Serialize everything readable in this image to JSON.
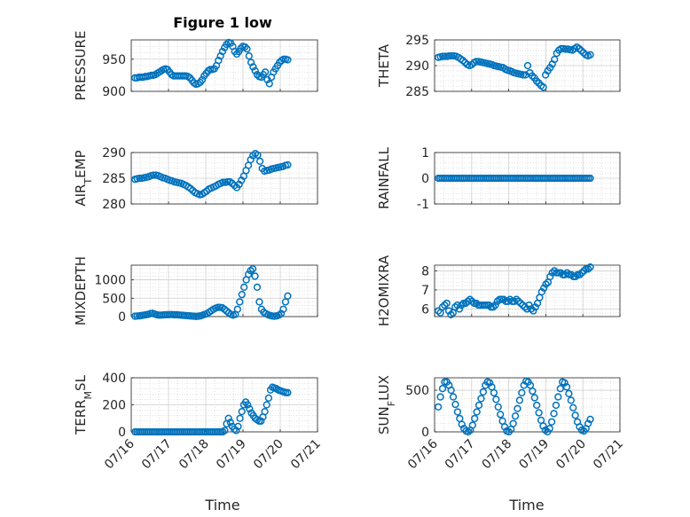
{
  "figure": {
    "title": "Figure 1 low"
  },
  "chart_data": [
    {
      "type": "scatter",
      "title": "Figure 1 low",
      "ylabel": "PRESSURE",
      "ylim": [
        900,
        980
      ],
      "yticks": [
        900,
        950
      ],
      "xlim": [
        0,
        5
      ],
      "xticks": [
        0,
        1,
        2,
        3,
        4,
        5
      ],
      "grid": true,
      "minor_grid": true,
      "marker": "open-circle",
      "series": [
        {
          "x_start": 0.1,
          "x_end": 4.2,
          "y": [
            921,
            921,
            922,
            922,
            922,
            923,
            923,
            924,
            925,
            925,
            926,
            928,
            930,
            932,
            934,
            935,
            934,
            930,
            926,
            924,
            924,
            924,
            924,
            924,
            924,
            924,
            923,
            921,
            917,
            913,
            911,
            912,
            914,
            918,
            924,
            928,
            932,
            934,
            934,
            935,
            940,
            948,
            955,
            962,
            968,
            973,
            976,
            975,
            970,
            962,
            958,
            962,
            967,
            970,
            969,
            966,
            955,
            945,
            938,
            932,
            926,
            923,
            922,
            926,
            930,
            918,
            912,
            922,
            930,
            935,
            940,
            945,
            948,
            950,
            950,
            949
          ]
        }
      ]
    },
    {
      "type": "scatter",
      "title": "",
      "ylabel": "THETA",
      "ylim": [
        285,
        295
      ],
      "yticks": [
        285,
        290,
        295
      ],
      "xlim": [
        0,
        5
      ],
      "xticks": [
        0,
        1,
        2,
        3,
        4,
        5
      ],
      "grid": true,
      "minor_grid": true,
      "marker": "open-circle",
      "series": [
        {
          "x_start": 0.1,
          "x_end": 4.2,
          "y": [
            291.6,
            291.7,
            291.8,
            291.8,
            291.8,
            291.9,
            291.9,
            291.9,
            291.8,
            291.6,
            291.3,
            291,
            290.6,
            290.2,
            290,
            290.2,
            290.6,
            290.8,
            290.8,
            290.7,
            290.6,
            290.5,
            290.4,
            290.3,
            290.2,
            290,
            289.9,
            289.8,
            289.7,
            289.6,
            289.3,
            289.1,
            289,
            288.8,
            288.6,
            288.5,
            288.4,
            288.3,
            288.2,
            288.2,
            290,
            288.6,
            288,
            287.6,
            287,
            286.6,
            286.1,
            285.8,
            288.2,
            289,
            289.6,
            290.3,
            291.2,
            292.4,
            293,
            293.3,
            293.3,
            293.2,
            293.2,
            293.1,
            293,
            293.3,
            293.6,
            293.3,
            292.9,
            292.5,
            292.1,
            291.9,
            292.1
          ]
        }
      ]
    },
    {
      "type": "scatter",
      "title": "",
      "ylabel": "AIR_TEMP",
      "ylim": [
        280,
        290
      ],
      "yticks": [
        280,
        285,
        290
      ],
      "xlim": [
        0,
        5
      ],
      "xticks": [
        0,
        1,
        2,
        3,
        4,
        5
      ],
      "grid": true,
      "minor_grid": true,
      "marker": "open-circle",
      "series": [
        {
          "x_start": 0.1,
          "x_end": 4.2,
          "y": [
            284.8,
            284.9,
            285,
            285,
            285.1,
            285.2,
            285.3,
            285.5,
            285.6,
            285.6,
            285.5,
            285.3,
            285.1,
            285,
            284.8,
            284.6,
            284.5,
            284.3,
            284.2,
            284.1,
            284,
            283.8,
            283.6,
            283.3,
            283,
            282.6,
            282.2,
            282,
            281.8,
            281.9,
            282.2,
            282.5,
            282.9,
            283.1,
            283.3,
            283.5,
            283.8,
            284,
            284.2,
            284.2,
            284.3,
            284.3,
            284,
            283.6,
            283.2,
            283.8,
            284.6,
            285.4,
            286.5,
            287.5,
            288.6,
            289.4,
            289.8,
            289.5,
            288.3,
            286.9,
            286.4,
            286.5,
            286.6,
            286.8,
            286.9,
            287,
            287.1,
            287.2,
            287.3,
            287.5,
            287.6
          ]
        }
      ]
    },
    {
      "type": "scatter",
      "title": "",
      "ylabel": "RAINFALL",
      "ylim": [
        -1,
        1
      ],
      "yticks": [
        -1,
        0,
        1
      ],
      "xlim": [
        0,
        5
      ],
      "xticks": [
        0,
        1,
        2,
        3,
        4,
        5
      ],
      "grid": true,
      "minor_grid": true,
      "marker": "open-circle",
      "series": [
        {
          "x_start": 0.1,
          "x_end": 4.2,
          "constant": 0,
          "count": 82
        }
      ]
    },
    {
      "type": "scatter",
      "title": "",
      "ylabel": "MIXDEPTH",
      "ylim": [
        0,
        1400
      ],
      "yticks": [
        0,
        500,
        1000
      ],
      "xlim": [
        0,
        5
      ],
      "xticks": [
        0,
        1,
        2,
        3,
        4,
        5
      ],
      "grid": true,
      "minor_grid": true,
      "marker": "open-circle",
      "series": [
        {
          "x_start": 0.1,
          "x_end": 4.2,
          "y": [
            10,
            15,
            20,
            30,
            40,
            50,
            60,
            80,
            90,
            70,
            50,
            40,
            40,
            45,
            50,
            50,
            55,
            55,
            50,
            50,
            45,
            40,
            35,
            30,
            25,
            20,
            15,
            10,
            5,
            10,
            20,
            40,
            60,
            80,
            120,
            160,
            200,
            230,
            250,
            250,
            240,
            200,
            150,
            100,
            60,
            40,
            60,
            200,
            400,
            600,
            800,
            1000,
            1150,
            1250,
            1300,
            1100,
            800,
            400,
            200,
            120,
            80,
            50,
            30,
            15,
            10,
            20,
            40,
            80,
            200,
            400,
            560
          ]
        }
      ]
    },
    {
      "type": "scatter",
      "title": "",
      "ylabel": "H2OMIXRA",
      "ylim": [
        5.6,
        8.3
      ],
      "yticks": [
        6,
        7,
        8
      ],
      "xlim": [
        0,
        5
      ],
      "xticks": [
        0,
        1,
        2,
        3,
        4,
        5
      ],
      "grid": true,
      "minor_grid": true,
      "marker": "open-circle",
      "series": [
        {
          "x_start": 0.1,
          "x_end": 4.2,
          "y": [
            5.9,
            5.8,
            6.1,
            6.2,
            6.3,
            5.9,
            5.7,
            5.8,
            6.1,
            6.2,
            6,
            6.2,
            6.3,
            6.3,
            6.4,
            6.5,
            6.4,
            6.3,
            6.3,
            6.2,
            6.2,
            6.2,
            6.2,
            6.2,
            6.2,
            6.1,
            6.1,
            6.2,
            6.4,
            6.5,
            6.5,
            6.5,
            6.4,
            6.4,
            6.5,
            6.4,
            6.4,
            6.5,
            6.4,
            6.3,
            6.2,
            6.1,
            6,
            6.2,
            6,
            5.9,
            6.1,
            6.3,
            6.6,
            6.9,
            7.1,
            7.3,
            7.4,
            7.7,
            7.9,
            8,
            7.9,
            7.9,
            7.9,
            7.8,
            7.8,
            7.9,
            7.8,
            7.8,
            7.7,
            7.7,
            7.8,
            7.8,
            7.9,
            8,
            8.1,
            8.1,
            8.2
          ]
        }
      ]
    },
    {
      "type": "scatter",
      "title": "",
      "ylabel": "TERR_MSL",
      "ylim": [
        0,
        400
      ],
      "yticks": [
        0,
        200,
        400
      ],
      "xlim": [
        0,
        5
      ],
      "xticks": [
        0,
        1,
        2,
        3,
        4,
        5
      ],
      "grid": true,
      "minor_grid": true,
      "marker": "open-circle",
      "series": [
        {
          "x_start": 0.1,
          "x_end": 4.2,
          "y": [
            0,
            0,
            0,
            0,
            0,
            0,
            0,
            0,
            0,
            0,
            0,
            0,
            0,
            0,
            0,
            0,
            0,
            0,
            0,
            0,
            0,
            0,
            0,
            0,
            0,
            0,
            0,
            0,
            0,
            0,
            0,
            0,
            0,
            0,
            0,
            0,
            0,
            0,
            0,
            0,
            0,
            0,
            0,
            0,
            0,
            0,
            0,
            10,
            60,
            100,
            70,
            40,
            20,
            10,
            40,
            100,
            150,
            200,
            220,
            200,
            170,
            140,
            120,
            100,
            90,
            80,
            80,
            110,
            150,
            200,
            250,
            310,
            330,
            325,
            320,
            310,
            305,
            300,
            295,
            290,
            290
          ]
        }
      ]
    },
    {
      "type": "scatter",
      "title": "",
      "ylabel": "SUN_FLUX",
      "ylim": [
        0,
        650
      ],
      "yticks": [
        0,
        500
      ],
      "xlim": [
        0,
        5
      ],
      "xticks": [
        0,
        1,
        2,
        3,
        4,
        5
      ],
      "grid": true,
      "minor_grid": true,
      "marker": "open-circle",
      "series": [
        {
          "x_start": 0.1,
          "x_end": 4.2,
          "y": [
            300,
            420,
            520,
            600,
            600,
            560,
            500,
            420,
            330,
            240,
            160,
            90,
            40,
            10,
            0,
            20,
            80,
            160,
            240,
            320,
            400,
            480,
            560,
            600,
            590,
            540,
            470,
            390,
            300,
            210,
            130,
            60,
            10,
            0,
            30,
            100,
            190,
            280,
            380,
            470,
            560,
            610,
            600,
            560,
            490,
            410,
            320,
            230,
            140,
            70,
            20,
            0,
            40,
            120,
            220,
            320,
            420,
            520,
            600,
            590,
            540,
            460,
            380,
            290,
            200,
            120,
            60,
            20,
            10,
            40,
            100,
            150
          ]
        }
      ]
    }
  ],
  "x_axis": {
    "label": "Time",
    "tick_labels": [
      "07/16",
      "07/17",
      "07/18",
      "07/19",
      "07/20",
      "07/21"
    ]
  },
  "colors": {
    "marker": "#0072BD",
    "grid": "#dcdcdc",
    "axis": "#262626"
  }
}
